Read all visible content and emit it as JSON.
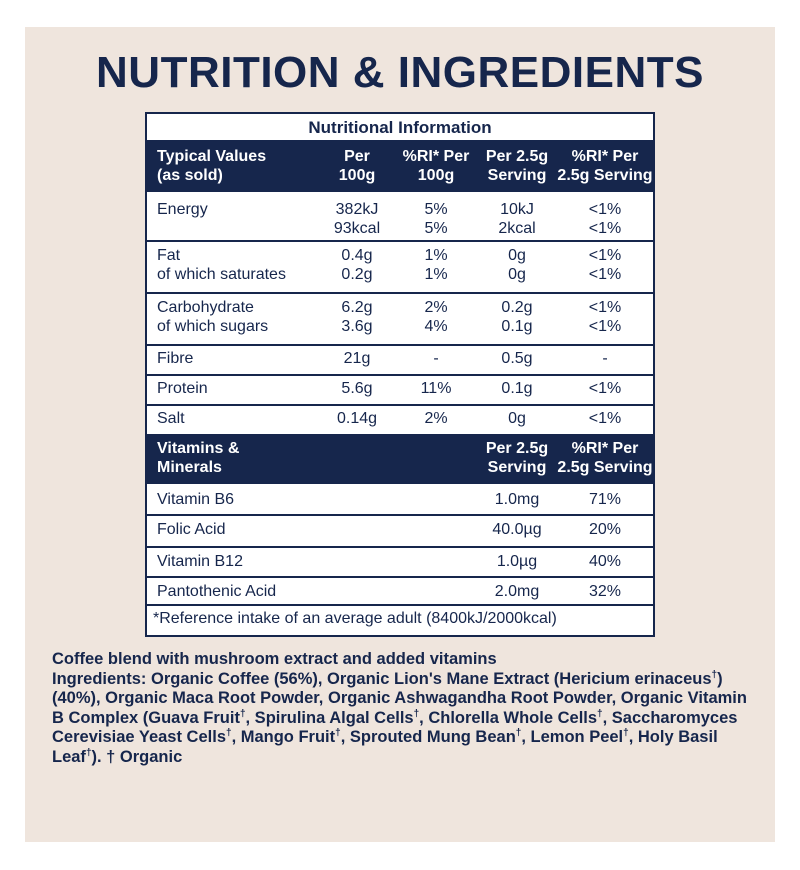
{
  "title": "NUTRITION & INGREDIENTS",
  "table": {
    "caption": "Nutritional Information",
    "header": {
      "label": [
        "Typical Values",
        "(as sold)"
      ],
      "per100": [
        "Per",
        "100g"
      ],
      "ri100": [
        "%RI* Per",
        "100g"
      ],
      "perServing": [
        "Per 2.5g",
        "Serving"
      ],
      "riServing": [
        "%RI* Per",
        "2.5g Serving"
      ]
    },
    "rows": [
      {
        "labels": [
          "Energy"
        ],
        "per100": [
          "382kJ",
          "93kcal"
        ],
        "ri100": [
          "5%",
          "5%"
        ],
        "perServing": [
          "10kJ",
          "2kcal"
        ],
        "riServing": [
          "<1%",
          "<1%"
        ]
      },
      {
        "labels": [
          "Fat",
          "of which saturates"
        ],
        "per100": [
          "0.4g",
          "0.2g"
        ],
        "ri100": [
          "1%",
          "1%"
        ],
        "perServing": [
          "0g",
          "0g"
        ],
        "riServing": [
          "<1%",
          "<1%"
        ]
      },
      {
        "labels": [
          "Carbohydrate",
          "of which sugars"
        ],
        "per100": [
          "6.2g",
          "3.6g"
        ],
        "ri100": [
          "2%",
          "4%"
        ],
        "perServing": [
          "0.2g",
          "0.1g"
        ],
        "riServing": [
          "<1%",
          "<1%"
        ]
      },
      {
        "labels": [
          "Fibre"
        ],
        "per100": [
          "21g"
        ],
        "ri100": [
          "-"
        ],
        "perServing": [
          "0.5g"
        ],
        "riServing": [
          "-"
        ]
      },
      {
        "labels": [
          "Protein"
        ],
        "per100": [
          "5.6g"
        ],
        "ri100": [
          "11%"
        ],
        "perServing": [
          "0.1g"
        ],
        "riServing": [
          "<1%"
        ]
      },
      {
        "labels": [
          "Salt"
        ],
        "per100": [
          "0.14g"
        ],
        "ri100": [
          "2%"
        ],
        "perServing": [
          "0g"
        ],
        "riServing": [
          "<1%"
        ]
      }
    ],
    "vitaminsHeader": {
      "label": [
        "Vitamins &",
        "Minerals"
      ],
      "perServing": [
        "Per 2.5g",
        "Serving"
      ],
      "riServing": [
        "%RI* Per",
        "2.5g Serving"
      ]
    },
    "vitamins": [
      {
        "label": "Vitamin B6",
        "perServing": "1.0mg",
        "riServing": "71%"
      },
      {
        "label": "Folic Acid",
        "perServing": "40.0µg",
        "riServing": "20%"
      },
      {
        "label": "Vitamin B12",
        "perServing": "1.0µg",
        "riServing": "40%"
      },
      {
        "label": "Pantothenic Acid",
        "perServing": "2.0mg",
        "riServing": "32%"
      }
    ],
    "footnote": "*Reference intake of an average adult (8400kJ/2000kcal)"
  },
  "ingredients": {
    "description": "Coffee blend with mushroom extract and added vitamins",
    "label": "Ingredients:",
    "parts": [
      " Organic Coffee (56%), Organic Lion's Mane Extract (Hericium erinaceus",
      ") (40%), Organic Maca Root Powder, Organic Ashwagandha Root Powder, Organic Vitamin B Complex (Guava Fruit",
      ", Spirulina Algal Cells",
      ", Chlorella Whole Cells",
      ", Saccharomyces Cerevisiae Yeast Cells",
      ", Mango Fruit",
      ", Sprouted Mung Bean",
      ", Lemon Peel",
      ", Holy Basil Leaf",
      "). † Organic"
    ],
    "mark": "†"
  }
}
